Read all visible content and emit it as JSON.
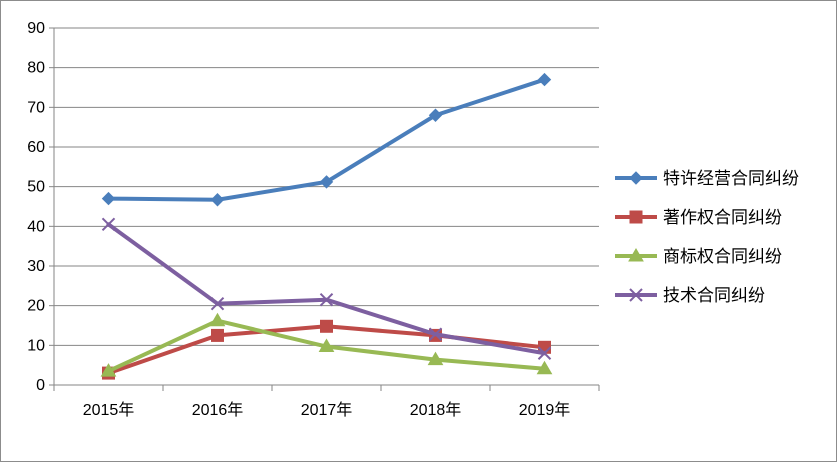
{
  "chart_data": {
    "type": "line",
    "title": "",
    "xlabel": "",
    "ylabel": "",
    "categories": [
      "2015年",
      "2016年",
      "2017年",
      "2018年",
      "2019年"
    ],
    "ylim": [
      0,
      90
    ],
    "yticks": [
      0,
      10,
      20,
      30,
      40,
      50,
      60,
      70,
      80,
      90
    ],
    "grid": true,
    "legend": "right",
    "series": [
      {
        "name": "特许经营合同纠纷",
        "values": [
          47,
          46.7,
          51.2,
          68,
          77
        ],
        "color": "#4a7ebb",
        "marker": "diamond"
      },
      {
        "name": "著作权合同纠纷",
        "values": [
          3,
          12.5,
          14.8,
          12.5,
          9.5
        ],
        "color": "#be4b48",
        "marker": "square"
      },
      {
        "name": "商标权合同纠纷",
        "values": [
          3.5,
          16.2,
          9.7,
          6.4,
          4.1
        ],
        "color": "#98b954",
        "marker": "triangle"
      },
      {
        "name": "技术合同纠纷",
        "values": [
          40.5,
          20.5,
          21.5,
          12.8,
          8
        ],
        "color": "#7d5fa0",
        "marker": "x"
      }
    ]
  }
}
